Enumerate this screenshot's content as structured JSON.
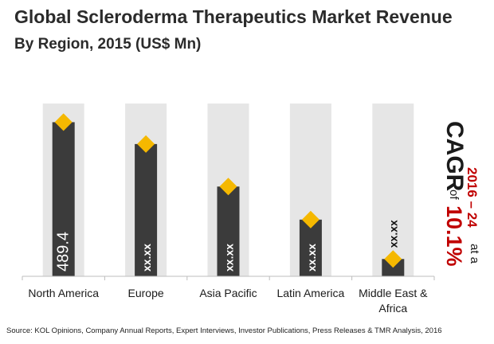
{
  "title": "Global Scleroderma Therapeutics Market Revenue",
  "subtitle": "By Region, 2015 (US$ Mn)",
  "source": "Source: KOL Opinions, Company Annual Reports, Expert Interviews, Investor Publications, Press Releases & TMR Analysis, 2016",
  "cagr": {
    "label": "CAGR",
    "of": "of",
    "value": "10.1%",
    "period": "2016 – 24",
    "at_a": "at a"
  },
  "colors": {
    "bar": "#3b3b3b",
    "column_bg": "#e6e6e6",
    "marker": "#f5b800",
    "cagr_red": "#c00000",
    "bar_text": "#ffffff",
    "placeholder_text": "#111111"
  },
  "chart_data": {
    "type": "bar",
    "title": "Global Scleroderma Therapeutics Market Revenue",
    "subtitle": "By Region, 2015 (US$ Mn)",
    "categories": [
      "North America",
      "Europe",
      "Asia Pacific",
      "Latin America",
      "Middle East & Africa"
    ],
    "category_lines": [
      [
        "North America"
      ],
      [
        "Europe"
      ],
      [
        "Asia Pacific"
      ],
      [
        "Latin America"
      ],
      [
        "Middle East &",
        "Africa"
      ]
    ],
    "values": [
      489.4,
      420,
      285,
      180,
      55
    ],
    "data_labels": [
      "489.4",
      "xx.xx",
      "xx.xx",
      "xx.xx",
      "xx.xx"
    ],
    "ylim": [
      0,
      560
    ],
    "grid": false,
    "legend": "none"
  }
}
